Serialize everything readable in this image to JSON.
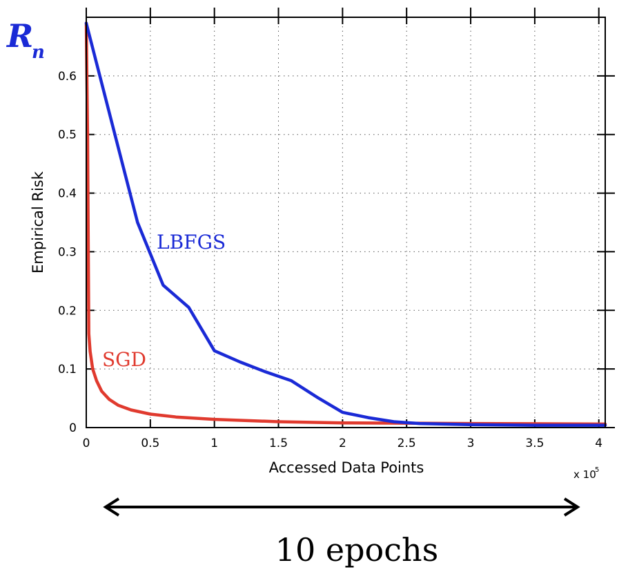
{
  "chart_data": {
    "type": "line",
    "xlabel": "Accessed Data Points",
    "ylabel": "Empirical Risk",
    "x_multiplier_label": "x 10",
    "x_multiplier_exp": "5",
    "xlim": [
      0,
      4.05
    ],
    "ylim": [
      0,
      0.7
    ],
    "xticks": [
      "0",
      "0.5",
      "1",
      "1.5",
      "2",
      "2.5",
      "3",
      "3.5",
      "4"
    ],
    "xtick_values": [
      0,
      0.5,
      1,
      1.5,
      2,
      2.5,
      3,
      3.5,
      4
    ],
    "yticks": [
      "0",
      "0.1",
      "0.2",
      "0.3",
      "0.4",
      "0.5",
      "0.6"
    ],
    "ytick_values": [
      0,
      0.1,
      0.2,
      0.3,
      0.4,
      0.5,
      0.6
    ],
    "grid": true,
    "series": [
      {
        "name": "LBFGS",
        "color": "#1a2ad6",
        "x": [
          0,
          0.2,
          0.4,
          0.6,
          0.8,
          1.0,
          1.2,
          1.4,
          1.6,
          1.8,
          2.0,
          2.2,
          2.4,
          2.6,
          3.0,
          3.5,
          4.05
        ],
        "y": [
          0.69,
          0.52,
          0.35,
          0.243,
          0.205,
          0.131,
          0.112,
          0.095,
          0.08,
          0.052,
          0.026,
          0.017,
          0.01,
          0.007,
          0.005,
          0.004,
          0.004
        ]
      },
      {
        "name": "SGD",
        "color": "#e03a2e",
        "x": [
          0,
          0.01,
          0.02,
          0.03,
          0.05,
          0.08,
          0.12,
          0.18,
          0.25,
          0.35,
          0.5,
          0.7,
          1.0,
          1.5,
          2.0,
          3.0,
          4.05
        ],
        "y": [
          0.69,
          0.5,
          0.16,
          0.13,
          0.1,
          0.08,
          0.062,
          0.048,
          0.038,
          0.03,
          0.023,
          0.018,
          0.014,
          0.01,
          0.008,
          0.007,
          0.006
        ]
      }
    ]
  },
  "annotations": {
    "rn_main": "R",
    "rn_sub": "n",
    "lbfgs_label": "LBFGS",
    "sgd_label": "SGD",
    "epochs_text": "10 epochs"
  },
  "colors": {
    "lbfgs": "#1a2ad6",
    "sgd": "#e03a2e",
    "axis": "#000000"
  }
}
